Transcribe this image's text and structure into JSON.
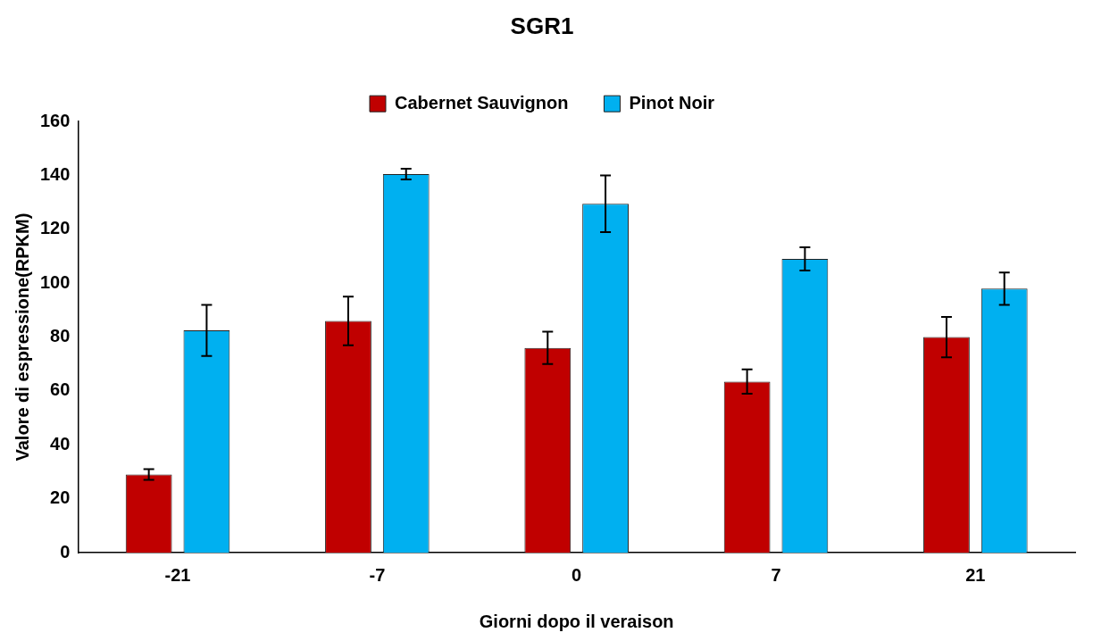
{
  "chart_data": {
    "type": "bar",
    "title": "SGR1",
    "xlabel": "Giorni dopo il veraison",
    "ylabel": "Valore di espressione(RPKM)",
    "categories": [
      "-21",
      "-7",
      "0",
      "7",
      "21"
    ],
    "series": [
      {
        "name": "Cabernet Sauvignon",
        "color": "#c00000",
        "values": [
          29,
          86,
          76,
          63.5,
          80
        ],
        "errors": [
          2,
          9,
          6,
          4.5,
          7.5
        ]
      },
      {
        "name": "Pinot Noir",
        "color": "#00b0f0",
        "values": [
          82.5,
          140.5,
          129.5,
          109,
          98
        ],
        "errors": [
          9.5,
          2,
          10.5,
          4.3,
          6
        ]
      }
    ],
    "ylim": [
      0,
      160
    ],
    "yticks": [
      0,
      20,
      40,
      60,
      80,
      100,
      120,
      140,
      160
    ],
    "grid": false,
    "legend": "top"
  }
}
